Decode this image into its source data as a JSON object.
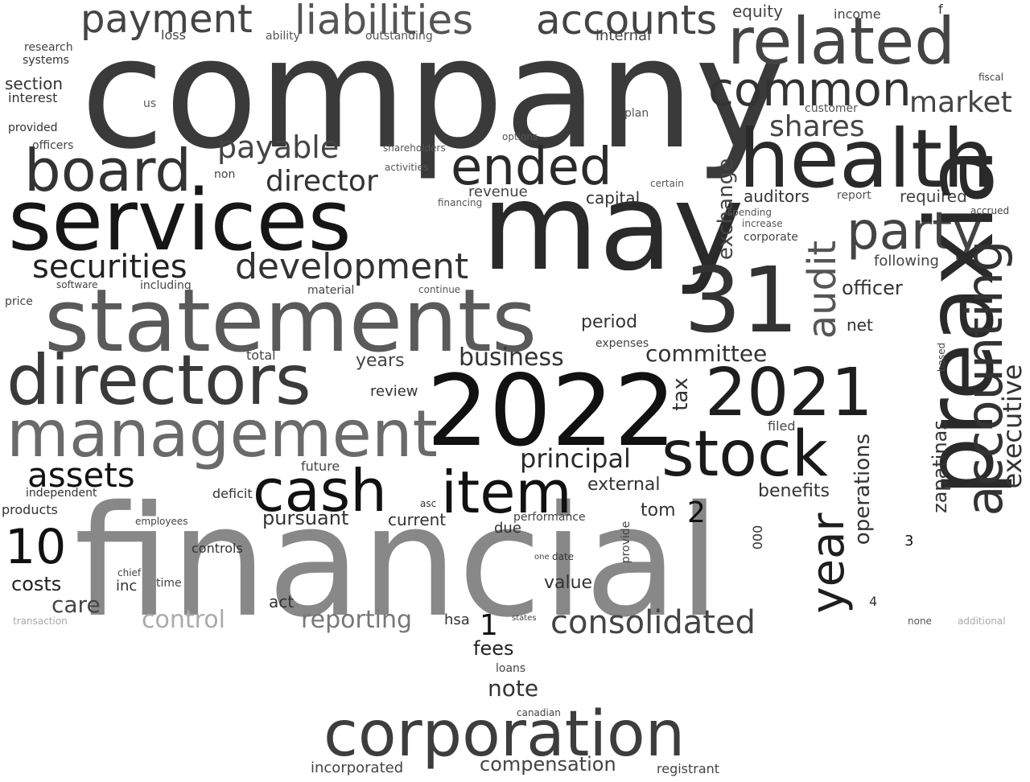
{
  "words": [
    {
      "text": "company",
      "color": "#3a3a3a"
    },
    {
      "text": "financial",
      "color": "#888888"
    },
    {
      "text": "may",
      "color": "#2a2a2a"
    },
    {
      "text": "statements",
      "color": "#5a5a5a"
    },
    {
      "text": "services",
      "color": "#161616"
    },
    {
      "text": "2022",
      "color": "#111111"
    },
    {
      "text": "preaxia",
      "color": "#2a2a2a"
    },
    {
      "text": "health",
      "color": "#2a2a2a"
    },
    {
      "text": "31",
      "color": "#333333"
    },
    {
      "text": "corporation",
      "color": "#3d3d3d"
    },
    {
      "text": "directors",
      "color": "#3a3a3a"
    },
    {
      "text": "management",
      "color": "#6a6a6a"
    },
    {
      "text": "accounting",
      "color": "#333333"
    },
    {
      "text": "2021",
      "color": "#1e1e1e"
    },
    {
      "text": "related",
      "color": "#444444"
    },
    {
      "text": "board",
      "color": "#333333"
    },
    {
      "text": "stock",
      "color": "#1a1a1a"
    },
    {
      "text": "item",
      "color": "#111111"
    },
    {
      "text": "cash",
      "color": "#111111"
    },
    {
      "text": "liabilities",
      "color": "#555555"
    },
    {
      "text": "accounts",
      "color": "#444444"
    },
    {
      "text": "audit",
      "color": "#555555"
    },
    {
      "text": "year",
      "color": "#1e1e1e"
    },
    {
      "text": "party",
      "color": "#444444"
    },
    {
      "text": "common",
      "color": "#333333"
    },
    {
      "text": "ended",
      "color": "#2a2a2a"
    },
    {
      "text": "payment",
      "color": "#444444"
    },
    {
      "text": "development",
      "color": "#333333"
    },
    {
      "text": "securities",
      "color": "#222222"
    },
    {
      "text": "consolidated",
      "color": "#444444"
    },
    {
      "text": "executive",
      "color": "#333333"
    },
    {
      "text": "assets",
      "color": "#111111"
    },
    {
      "text": "10",
      "color": "#111111"
    },
    {
      "text": "market",
      "color": "#444444"
    },
    {
      "text": "shares",
      "color": "#444444"
    },
    {
      "text": "payable",
      "color": "#444444"
    },
    {
      "text": "director",
      "color": "#333333"
    },
    {
      "text": "exchange",
      "color": "#444444"
    },
    {
      "text": "operations",
      "color": "#333333"
    },
    {
      "text": "principal",
      "color": "#2a2a2a"
    },
    {
      "text": "business",
      "color": "#333333"
    },
    {
      "text": "committee",
      "color": "#333333"
    },
    {
      "text": "reporting",
      "color": "#777777"
    },
    {
      "text": "control",
      "color": "#aaaaaa"
    },
    {
      "text": "zapatinas",
      "color": "#333333"
    },
    {
      "text": "tax",
      "color": "#333333"
    },
    {
      "text": "note",
      "color": "#333333"
    },
    {
      "text": "fees",
      "color": "#222222"
    },
    {
      "text": "compensation",
      "color": "#444444"
    },
    {
      "text": "care",
      "color": "#444444"
    },
    {
      "text": "costs",
      "color": "#222222"
    },
    {
      "text": "officer",
      "color": "#333333"
    },
    {
      "text": "pursuant",
      "color": "#333333"
    },
    {
      "text": "external",
      "color": "#333333"
    },
    {
      "text": "benefits",
      "color": "#333333"
    },
    {
      "text": "period",
      "color": "#333333"
    },
    {
      "text": "value",
      "color": "#333333"
    },
    {
      "text": "capital",
      "color": "#333333"
    },
    {
      "text": "revenue",
      "color": "#444444"
    },
    {
      "text": "auditors",
      "color": "#333333"
    },
    {
      "text": "required",
      "color": "#444444"
    },
    {
      "text": "following",
      "color": "#444444"
    },
    {
      "text": "net",
      "color": "#333333"
    },
    {
      "text": "current",
      "color": "#333333"
    },
    {
      "text": "review",
      "color": "#333333"
    },
    {
      "text": "years",
      "color": "#444444"
    },
    {
      "text": "internal",
      "color": "#444444"
    },
    {
      "text": "equity",
      "color": "#444444"
    },
    {
      "text": "income",
      "color": "#444444"
    },
    {
      "text": "incorporated",
      "color": "#444444"
    },
    {
      "text": "registrant",
      "color": "#444444"
    },
    {
      "text": "tom",
      "color": "#333333"
    },
    {
      "text": "1",
      "color": "#111111"
    },
    {
      "text": "2",
      "color": "#111111"
    },
    {
      "text": "3",
      "color": "#111111"
    },
    {
      "text": "4",
      "color": "#333333"
    },
    {
      "text": "hsa",
      "color": "#333333"
    },
    {
      "text": "act",
      "color": "#333333"
    },
    {
      "text": "inc",
      "color": "#333333"
    },
    {
      "text": "000",
      "color": "#333333"
    },
    {
      "text": "due",
      "color": "#333333"
    },
    {
      "text": "loans",
      "color": "#444444"
    },
    {
      "text": "provide",
      "color": "#444444"
    },
    {
      "text": "total",
      "color": "#444444"
    },
    {
      "text": "products",
      "color": "#333333"
    },
    {
      "text": "independent",
      "color": "#333333"
    },
    {
      "text": "controls",
      "color": "#333333"
    },
    {
      "text": "deficit",
      "color": "#333333"
    },
    {
      "text": "expenses",
      "color": "#444444"
    },
    {
      "text": "performance",
      "color": "#444444"
    },
    {
      "text": "filed",
      "color": "#444444"
    },
    {
      "text": "future",
      "color": "#444444"
    },
    {
      "text": "section",
      "color": "#333333"
    },
    {
      "text": "interest",
      "color": "#333333"
    },
    {
      "text": "systems",
      "color": "#333333"
    },
    {
      "text": "research",
      "color": "#444444"
    },
    {
      "text": "loss",
      "color": "#444444"
    },
    {
      "text": "ability",
      "color": "#555555"
    },
    {
      "text": "outstanding",
      "color": "#555555"
    },
    {
      "text": "customer",
      "color": "#555555"
    },
    {
      "text": "plan",
      "color": "#555555"
    },
    {
      "text": "corporate",
      "color": "#444444"
    },
    {
      "text": "spending",
      "color": "#555555"
    },
    {
      "text": "increase",
      "color": "#555555"
    },
    {
      "text": "report",
      "color": "#555555"
    },
    {
      "text": "non",
      "color": "#444444"
    },
    {
      "text": "including",
      "color": "#444444"
    },
    {
      "text": "price",
      "color": "#444444"
    },
    {
      "text": "officers",
      "color": "#444444"
    },
    {
      "text": "provided",
      "color": "#333333"
    },
    {
      "text": "financing",
      "color": "#555555"
    },
    {
      "text": "activities",
      "color": "#555555"
    },
    {
      "text": "shareholders",
      "color": "#555555"
    },
    {
      "text": "options",
      "color": "#555555"
    },
    {
      "text": "certain",
      "color": "#555555"
    },
    {
      "text": "time",
      "color": "#444444"
    },
    {
      "text": "chief",
      "color": "#444444"
    },
    {
      "text": "employees",
      "color": "#444444"
    },
    {
      "text": "asc",
      "color": "#333333"
    },
    {
      "text": "date",
      "color": "#333333"
    },
    {
      "text": "one",
      "color": "#444444"
    },
    {
      "text": "software",
      "color": "#444444"
    },
    {
      "text": "material",
      "color": "#444444"
    },
    {
      "text": "continue",
      "color": "#555555"
    },
    {
      "text": "transaction",
      "color": "#aaaaaa"
    },
    {
      "text": "additional",
      "color": "#aaaaaa"
    },
    {
      "text": "none",
      "color": "#555555"
    },
    {
      "text": "states",
      "color": "#444444"
    },
    {
      "text": "canadian",
      "color": "#444444"
    },
    {
      "text": "f",
      "color": "#333333"
    },
    {
      "text": "us",
      "color": "#555555"
    },
    {
      "text": "accrued",
      "color": "#444444"
    },
    {
      "text": "fiscal",
      "color": "#444444"
    },
    {
      "text": "based",
      "color": "#444444"
    }
  ]
}
